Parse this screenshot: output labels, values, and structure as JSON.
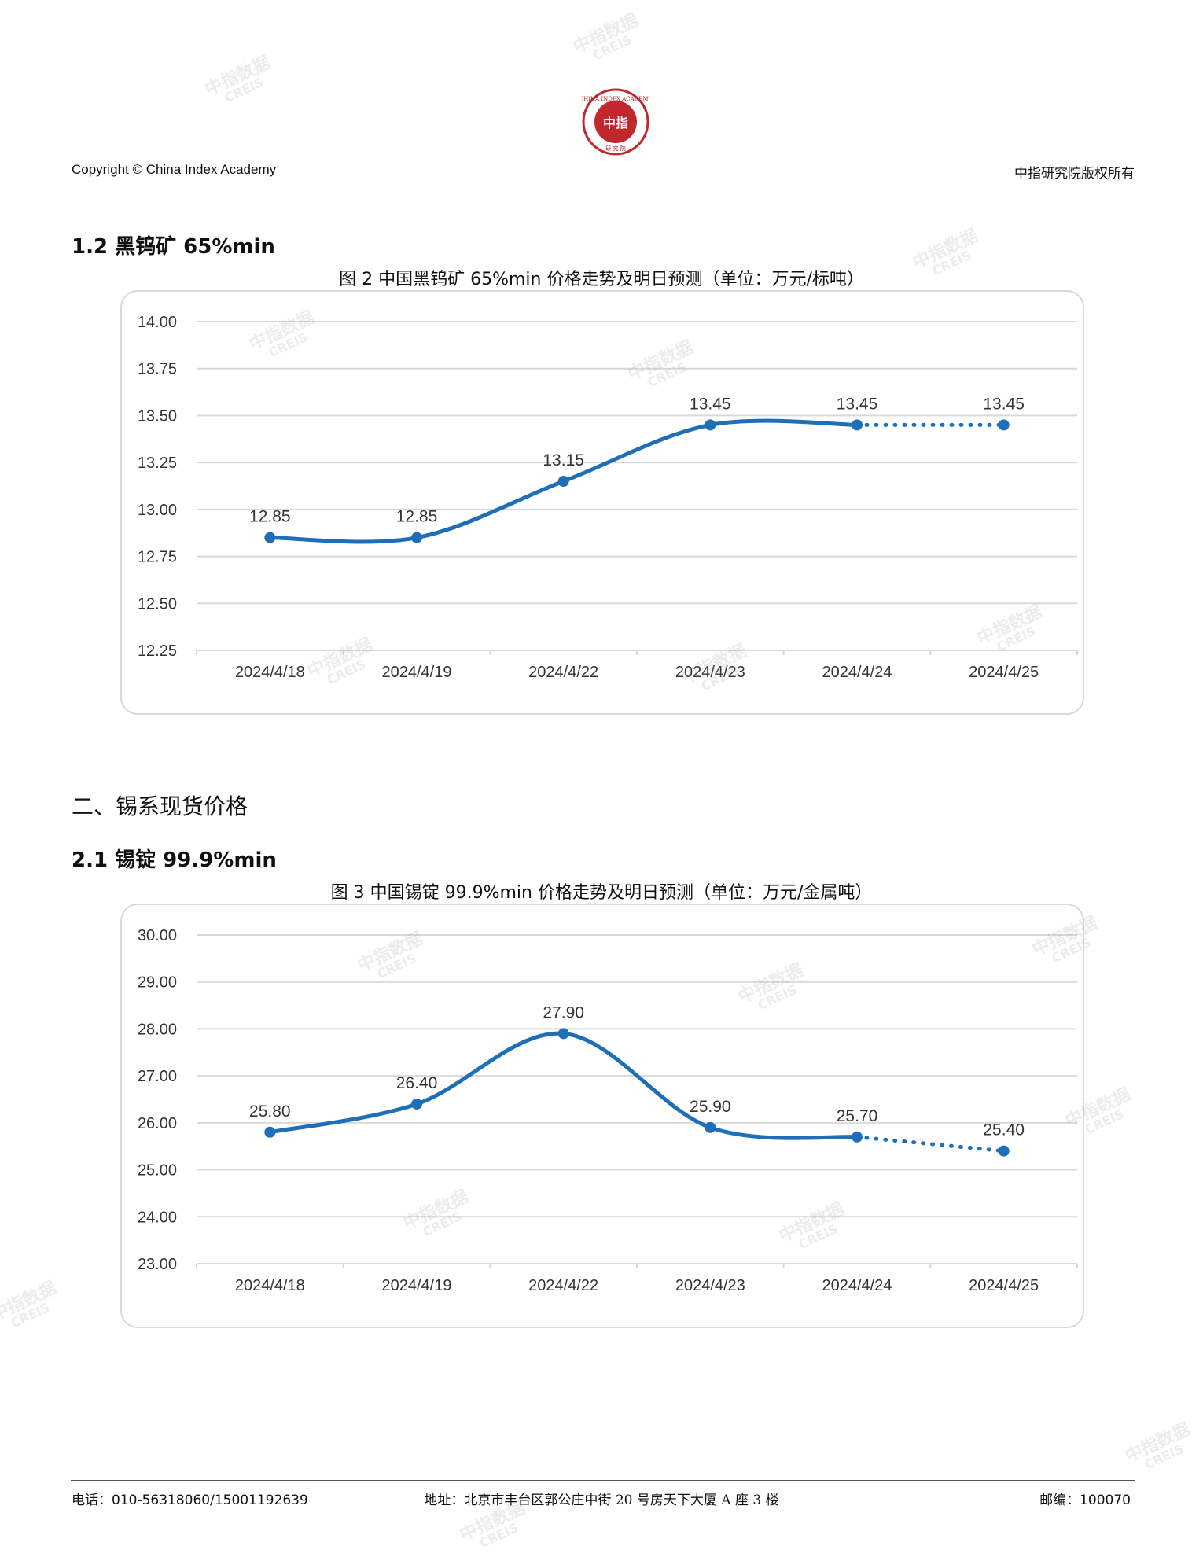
{
  "header": {
    "copyright": "Copyright © China Index Academy",
    "rights": "中指研究院版权所有",
    "logo_text": "中指",
    "logo_ring_text": "CHINA INDEX ACADEMY",
    "logo_bottom_text": "研 究 院"
  },
  "watermark": {
    "cn": "中指数据",
    "en": "CREIS"
  },
  "section_1_2": {
    "heading": "1.2 黑钨矿 65%min"
  },
  "section_2": {
    "heading": "二、锡系现货价格"
  },
  "section_2_1": {
    "heading": "2.1 锡锭 99.9%min"
  },
  "chart_data": [
    {
      "type": "line",
      "title": "图 2 中国黑钨矿 65%min 价格走势及明日预测（单位：万元/标吨）",
      "categories": [
        "2024/4/18",
        "2024/4/19",
        "2024/4/22",
        "2024/4/23",
        "2024/4/24",
        "2024/4/25"
      ],
      "values": [
        12.85,
        12.85,
        13.15,
        13.45,
        13.45,
        13.45
      ],
      "value_labels": [
        "12.85",
        "12.85",
        "13.15",
        "13.45",
        "13.45",
        "13.45"
      ],
      "forecast_from_index": 4,
      "ylim": [
        12.25,
        14.0
      ],
      "yticks": [
        "12.25",
        "12.50",
        "12.75",
        "13.00",
        "13.25",
        "13.50",
        "13.75",
        "14.00"
      ],
      "grid": true,
      "color": "#1f6fb8"
    },
    {
      "type": "line",
      "title": "图 3 中国锡锭 99.9%min 价格走势及明日预测（单位：万元/金属吨）",
      "categories": [
        "2024/4/18",
        "2024/4/19",
        "2024/4/22",
        "2024/4/23",
        "2024/4/24",
        "2024/4/25"
      ],
      "values": [
        25.8,
        26.4,
        27.9,
        25.9,
        25.7,
        25.4
      ],
      "value_labels": [
        "25.80",
        "26.40",
        "27.90",
        "25.90",
        "25.70",
        "25.40"
      ],
      "forecast_from_index": 4,
      "ylim": [
        23.0,
        30.0
      ],
      "yticks": [
        "23.00",
        "24.00",
        "25.00",
        "26.00",
        "27.00",
        "28.00",
        "29.00",
        "30.00"
      ],
      "grid": true,
      "color": "#1f6fb8"
    }
  ],
  "footer": {
    "phone": "电话：010-56318060/15001192639",
    "address": "地址：北京市丰台区郭公庄中街 20 号房天下大厦 A 座 3 楼",
    "postcode": "邮编：100070"
  }
}
